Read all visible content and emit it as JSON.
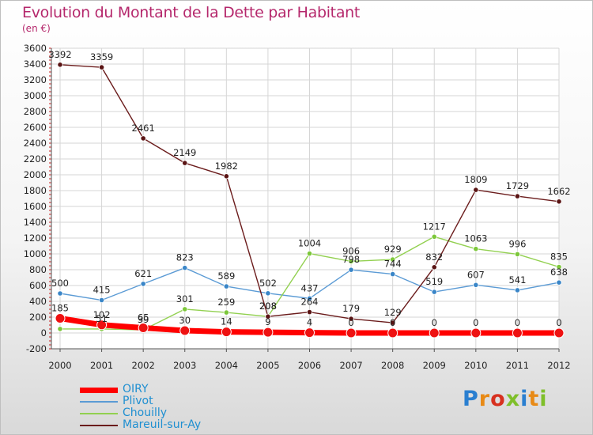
{
  "header": {
    "title": "Evolution du Montant de la Dette par Habitant",
    "unit": "(en €)"
  },
  "brand": {
    "letters": [
      "P",
      "r",
      "o",
      "x",
      "i",
      "t",
      "i"
    ],
    "colors": [
      "#2a7fd0",
      "#e88a16",
      "#d7301f",
      "#7fbf2a",
      "#2a7fd0",
      "#e88a16",
      "#7fbf2a"
    ]
  },
  "chart_data": {
    "type": "line",
    "title": "Evolution du Montant de la Dette par Habitant",
    "subtitle": "(en €)",
    "x": [
      "2000",
      "2001",
      "2002",
      "2003",
      "2004",
      "2005",
      "2006",
      "2007",
      "2008",
      "2009",
      "2010",
      "2011",
      "2012"
    ],
    "ylim": [
      -200,
      3600
    ],
    "yticks": [
      -200,
      0,
      200,
      400,
      600,
      800,
      1000,
      1200,
      1400,
      1600,
      1800,
      2000,
      2200,
      2400,
      2600,
      2800,
      3000,
      3200,
      3400,
      3600
    ],
    "grid": true,
    "legend_position": "bottom-left",
    "series": [
      {
        "name": "OIRY",
        "color": "#ff0000",
        "values": [
          185,
          102,
          65,
          30,
          14,
          9,
          4,
          0,
          0,
          0,
          0,
          0,
          0
        ],
        "labels": [
          "185",
          "102",
          "65",
          "30",
          "14",
          "9",
          "4",
          "0",
          "0",
          "0",
          "0",
          "0",
          "0"
        ]
      },
      {
        "name": "Plivot",
        "color": "#5b9bd5",
        "values": [
          500,
          415,
          621,
          823,
          589,
          502,
          437,
          798,
          744,
          519,
          607,
          541,
          638
        ],
        "labels": [
          "500",
          "415",
          "621",
          "823",
          "589",
          "502",
          "437",
          "798",
          "744",
          "519",
          "607",
          "541",
          "638"
        ]
      },
      {
        "name": "Chouilly",
        "color": "#92d050",
        "values": [
          51,
          51,
          39,
          301,
          259,
          208,
          1004,
          906,
          929,
          1217,
          1063,
          996,
          835
        ],
        "labels": [
          "",
          "51",
          "39",
          "301",
          "259",
          "208",
          "1004",
          "906",
          "929",
          "1217",
          "1063",
          "996",
          "835"
        ]
      },
      {
        "name": "Mareuil-sur-Ay",
        "color": "#6b1c1c",
        "values": [
          3392,
          3359,
          2461,
          2149,
          1982,
          208,
          264,
          179,
          129,
          832,
          1809,
          1729,
          1662
        ],
        "labels": [
          "3392",
          "3359",
          "2461",
          "2149",
          "1982",
          "208",
          "264",
          "179",
          "129",
          "832",
          "1809",
          "1729",
          "1662"
        ]
      }
    ]
  }
}
